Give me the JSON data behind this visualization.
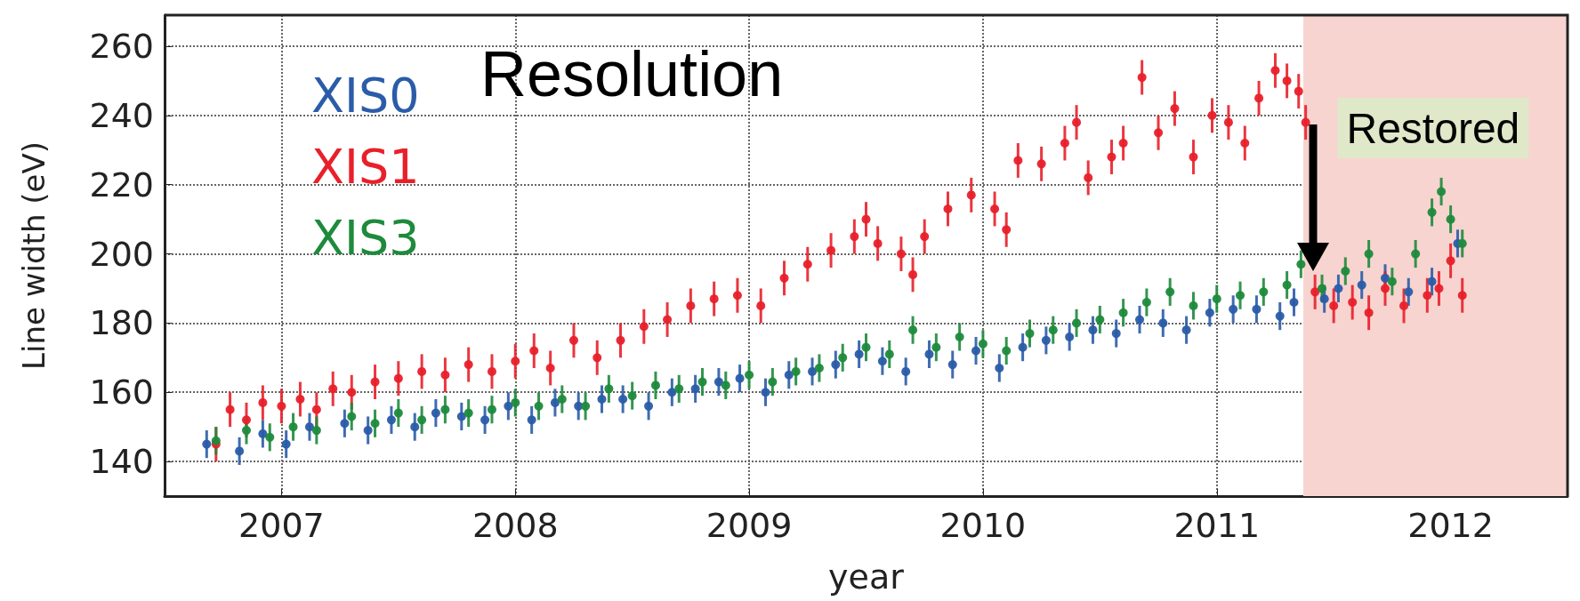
{
  "chart_data": {
    "type": "scatter",
    "title": "Resolution",
    "xlabel": "year",
    "ylabel": "Line width (eV)",
    "xlim": [
      2006.5,
      2012.5
    ],
    "xticks": [
      2007,
      2008,
      2009,
      2010,
      2011,
      2012
    ],
    "ylim": [
      130,
      269
    ],
    "yticks": [
      140,
      160,
      180,
      200,
      220,
      240,
      260
    ],
    "grid": true,
    "legend": "top left",
    "marker": "circle",
    "bands": [
      {
        "axis": "x",
        "from": 2011.37,
        "to": 2012.5,
        "color": "#f7d4d0"
      }
    ],
    "annotations": [
      {
        "text": "Restored",
        "x": 2011.41,
        "y": 195
      }
    ],
    "series": [
      {
        "name": "XIS0",
        "color": "#2a5ca8",
        "x": [
          2006.68,
          2006.82,
          2006.92,
          2007.02,
          2007.12,
          2007.27,
          2007.37,
          2007.47,
          2007.57,
          2007.66,
          2007.77,
          2007.87,
          2007.97,
          2008.07,
          2008.17,
          2008.27,
          2008.37,
          2008.46,
          2008.57,
          2008.67,
          2008.77,
          2008.87,
          2008.96,
          2009.07,
          2009.17,
          2009.27,
          2009.37,
          2009.47,
          2009.57,
          2009.67,
          2009.77,
          2009.87,
          2009.97,
          2010.07,
          2010.17,
          2010.27,
          2010.37,
          2010.47,
          2010.57,
          2010.67,
          2010.77,
          2010.87,
          2010.97,
          2011.07,
          2011.17,
          2011.27,
          2011.33,
          2011.46,
          2011.52,
          2011.62,
          2011.72,
          2011.82,
          2011.92,
          2012.03
        ],
        "values": [
          145,
          143,
          148,
          145,
          150,
          151,
          149,
          152,
          150,
          154,
          153,
          152,
          156,
          152,
          157,
          156,
          158,
          158,
          156,
          160,
          161,
          163,
          164,
          160,
          165,
          166,
          168,
          171,
          169,
          166,
          171,
          168,
          172,
          167,
          173,
          175,
          176,
          178,
          177,
          181,
          180,
          178,
          183,
          184,
          184,
          182,
          186,
          187,
          190,
          191,
          193,
          189,
          192,
          203
        ],
        "errors": [
          4,
          4,
          4,
          4,
          4,
          4,
          4,
          4,
          4,
          4,
          4,
          4,
          4,
          4,
          4,
          4,
          4,
          4,
          4,
          4,
          4,
          4,
          4,
          4,
          4,
          4,
          4,
          4,
          4,
          4,
          4,
          4,
          4,
          4,
          4,
          4,
          4,
          4,
          4,
          4,
          4,
          4,
          4,
          4,
          4,
          4,
          4,
          4,
          4,
          4,
          4,
          4,
          4,
          4
        ]
      },
      {
        "name": "XIS1",
        "color": "#e8202a",
        "x": [
          2006.72,
          2006.78,
          2006.85,
          2006.92,
          2007.0,
          2007.08,
          2007.15,
          2007.22,
          2007.3,
          2007.4,
          2007.5,
          2007.6,
          2007.7,
          2007.8,
          2007.9,
          2008.0,
          2008.08,
          2008.15,
          2008.25,
          2008.35,
          2008.45,
          2008.55,
          2008.65,
          2008.75,
          2008.85,
          2008.95,
          2009.05,
          2009.15,
          2009.25,
          2009.35,
          2009.45,
          2009.5,
          2009.55,
          2009.65,
          2009.7,
          2009.75,
          2009.85,
          2009.95,
          2010.05,
          2010.1,
          2010.15,
          2010.25,
          2010.35,
          2010.4,
          2010.45,
          2010.55,
          2010.6,
          2010.68,
          2010.75,
          2010.82,
          2010.9,
          2010.98,
          2011.05,
          2011.12,
          2011.18,
          2011.25,
          2011.3,
          2011.35,
          2011.38,
          2011.42,
          2011.5,
          2011.58,
          2011.65,
          2011.72,
          2011.8,
          2011.9,
          2011.95,
          2012.0,
          2012.05
        ],
        "values": [
          145,
          155,
          152,
          157,
          156,
          158,
          155,
          161,
          160,
          163,
          164,
          166,
          165,
          168,
          166,
          169,
          172,
          167,
          175,
          170,
          175,
          179,
          181,
          185,
          187,
          188,
          185,
          193,
          197,
          201,
          205,
          210,
          203,
          200,
          194,
          205,
          213,
          217,
          213,
          207,
          227,
          226,
          232,
          238,
          222,
          228,
          232,
          251,
          235,
          242,
          228,
          240,
          238,
          232,
          245,
          253,
          250,
          247,
          238,
          189,
          185,
          186,
          183,
          190,
          185,
          188,
          190,
          198,
          188
        ],
        "errors": [
          5,
          5,
          5,
          5,
          5,
          5,
          5,
          5,
          5,
          5,
          5,
          5,
          5,
          5,
          5,
          5,
          5,
          5,
          5,
          5,
          5,
          5,
          5,
          5,
          5,
          5,
          5,
          5,
          5,
          5,
          5,
          5,
          5,
          5,
          5,
          5,
          5,
          5,
          5,
          5,
          5,
          5,
          5,
          5,
          5,
          5,
          5,
          5,
          5,
          5,
          5,
          5,
          5,
          5,
          5,
          5,
          5,
          5,
          5,
          5,
          5,
          5,
          5,
          5,
          5,
          5,
          5,
          5,
          5
        ]
      },
      {
        "name": "XIS3",
        "color": "#1e8a3c",
        "x": [
          2006.72,
          2006.85,
          2006.95,
          2007.05,
          2007.15,
          2007.3,
          2007.4,
          2007.5,
          2007.6,
          2007.7,
          2007.8,
          2007.9,
          2008.0,
          2008.1,
          2008.2,
          2008.3,
          2008.4,
          2008.5,
          2008.6,
          2008.7,
          2008.8,
          2008.9,
          2009.0,
          2009.1,
          2009.2,
          2009.3,
          2009.4,
          2009.5,
          2009.6,
          2009.7,
          2009.8,
          2009.9,
          2010.0,
          2010.1,
          2010.2,
          2010.3,
          2010.4,
          2010.5,
          2010.6,
          2010.7,
          2010.8,
          2010.9,
          2011.0,
          2011.1,
          2011.2,
          2011.3,
          2011.36,
          2011.45,
          2011.55,
          2011.65,
          2011.75,
          2011.85,
          2011.92,
          2011.96,
          2012.0,
          2012.05
        ],
        "values": [
          146,
          149,
          147,
          150,
          149,
          153,
          151,
          154,
          152,
          155,
          154,
          155,
          157,
          156,
          158,
          156,
          161,
          159,
          162,
          161,
          163,
          162,
          165,
          163,
          166,
          167,
          170,
          173,
          171,
          178,
          173,
          176,
          174,
          172,
          177,
          178,
          180,
          181,
          183,
          186,
          189,
          185,
          187,
          188,
          189,
          191,
          197,
          190,
          195,
          200,
          192,
          200,
          212,
          218,
          210,
          203
        ],
        "errors": [
          4,
          4,
          4,
          4,
          4,
          4,
          4,
          4,
          4,
          4,
          4,
          4,
          4,
          4,
          4,
          4,
          4,
          4,
          4,
          4,
          4,
          4,
          4,
          4,
          4,
          4,
          4,
          4,
          4,
          4,
          4,
          4,
          4,
          4,
          4,
          4,
          4,
          4,
          4,
          4,
          4,
          4,
          4,
          4,
          4,
          4,
          4,
          4,
          4,
          4,
          4,
          4,
          4,
          4,
          4,
          4
        ]
      }
    ]
  }
}
